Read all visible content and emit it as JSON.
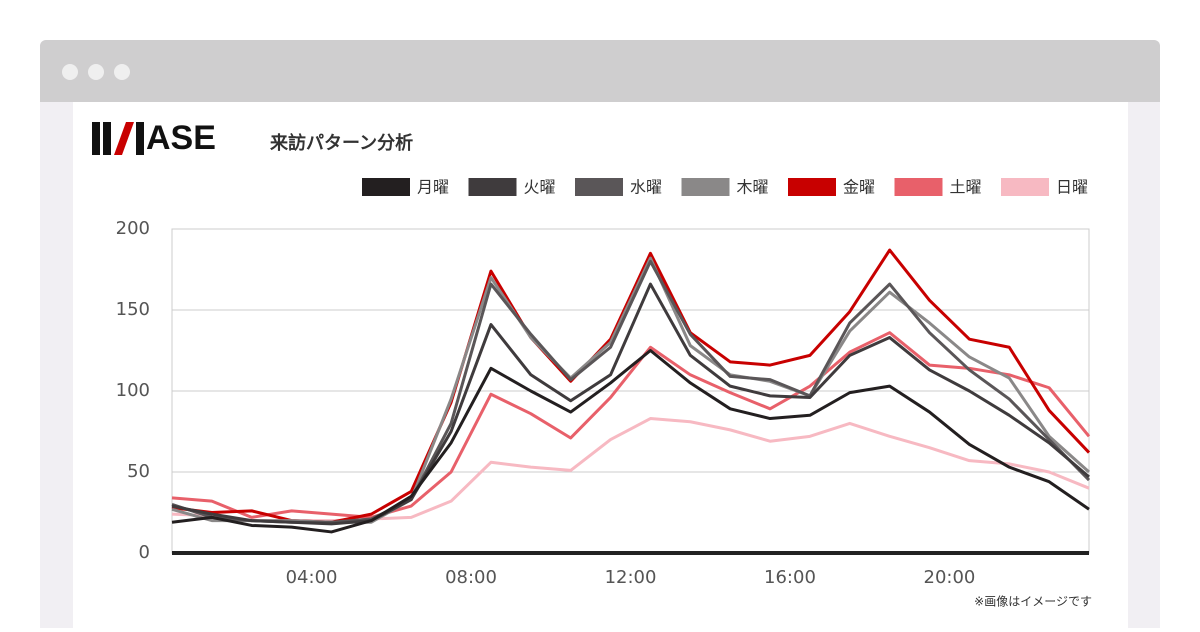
{
  "brand": "ASE",
  "chart_data": {
    "type": "line",
    "title": "来訪パターン分析",
    "x": [
      0.5,
      1.5,
      2.5,
      3.5,
      4.5,
      5.5,
      6.5,
      7.5,
      8.5,
      9.5,
      10.5,
      11.5,
      12.5,
      13.5,
      14.5,
      15.5,
      16.5,
      17.5,
      18.5,
      19.5,
      20.5,
      21.5,
      22.5,
      23.5
    ],
    "xlim": [
      0.5,
      23.5
    ],
    "xticks": [
      {
        "value": 4,
        "label": "04:00"
      },
      {
        "value": 8,
        "label": "08:00"
      },
      {
        "value": 12,
        "label": "12:00"
      },
      {
        "value": 16,
        "label": "16:00"
      },
      {
        "value": 20,
        "label": "20:00"
      }
    ],
    "ylim": [
      0,
      200
    ],
    "yticks": [
      0,
      50,
      100,
      150,
      200
    ],
    "grid": true,
    "legend": "top-right",
    "series": [
      {
        "name": "月曜",
        "color": "#231f20",
        "values": [
          19,
          22,
          17,
          16,
          13,
          20,
          35,
          68,
          114,
          100,
          87,
          105,
          125,
          105,
          89,
          83,
          85,
          99,
          103,
          87,
          67,
          53,
          44,
          27
        ]
      },
      {
        "name": "火曜",
        "color": "#3f3b3d",
        "values": [
          29,
          24,
          20,
          19,
          18,
          20,
          33,
          75,
          141,
          110,
          94,
          110,
          166,
          122,
          103,
          97,
          96,
          122,
          133,
          113,
          100,
          85,
          68,
          47
        ]
      },
      {
        "name": "水曜",
        "color": "#5a5658",
        "values": [
          30,
          22,
          20,
          19,
          19,
          21,
          33,
          80,
          166,
          135,
          107,
          127,
          180,
          135,
          109,
          107,
          97,
          142,
          166,
          136,
          113,
          95,
          70,
          45
        ]
      },
      {
        "name": "木曜",
        "color": "#8a8888",
        "values": [
          27,
          20,
          20,
          20,
          19,
          19,
          33,
          95,
          170,
          133,
          108,
          130,
          182,
          128,
          110,
          106,
          97,
          137,
          161,
          142,
          121,
          108,
          72,
          50
        ]
      },
      {
        "name": "金曜",
        "color": "#c80000",
        "values": [
          28,
          25,
          26,
          20,
          19,
          24,
          38,
          93,
          174,
          133,
          106,
          132,
          185,
          136,
          118,
          116,
          122,
          149,
          187,
          156,
          132,
          127,
          88,
          62
        ]
      },
      {
        "name": "土曜",
        "color": "#e8606a",
        "values": [
          34,
          32,
          22,
          26,
          24,
          22,
          29,
          50,
          98,
          86,
          71,
          96,
          127,
          110,
          99,
          89,
          103,
          124,
          136,
          116,
          114,
          110,
          102,
          72
        ]
      },
      {
        "name": "日曜",
        "color": "#f7b9c2",
        "values": [
          24,
          23,
          20,
          20,
          20,
          21,
          22,
          32,
          56,
          53,
          51,
          70,
          83,
          81,
          76,
          69,
          72,
          80,
          72,
          65,
          57,
          55,
          50,
          40
        ]
      }
    ]
  },
  "note": "※画像はイメージです"
}
